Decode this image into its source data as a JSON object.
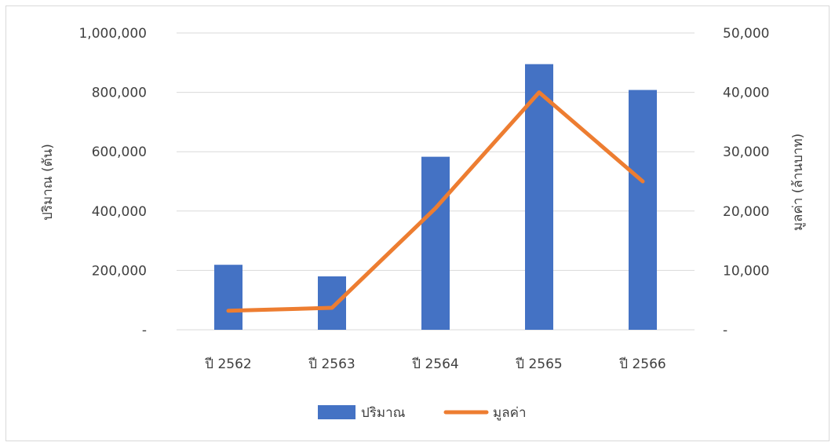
{
  "chart_data": {
    "type": "bar",
    "title": "",
    "categories": [
      "ปี 2562",
      "ปี 2563",
      "ปี 2564",
      "ปี 2565",
      "ปี 2566"
    ],
    "series": [
      {
        "name": "ปริมาณ",
        "type": "bar",
        "axis": "left",
        "color": "#4472c4",
        "values": [
          219000,
          180000,
          583000,
          895000,
          808000
        ]
      },
      {
        "name": "มูลค่า",
        "type": "line",
        "axis": "right",
        "color": "#ed7d31",
        "values": [
          3200,
          3700,
          20500,
          40000,
          25000
        ]
      }
    ],
    "ylabel": "ปริมาณ (ตัน)",
    "y2label": "มูลค่า (ล้านบาท)",
    "ylim": [
      0,
      1000000
    ],
    "y2lim": [
      0,
      50000
    ],
    "yticks": [
      "-",
      "200,000",
      "400,000",
      "600,000",
      "800,000",
      "1,000,000"
    ],
    "y2ticks": [
      "-",
      "10,000",
      "20,000",
      "30,000",
      "40,000",
      "50,000"
    ],
    "grid": true,
    "legend_position": "bottom"
  }
}
